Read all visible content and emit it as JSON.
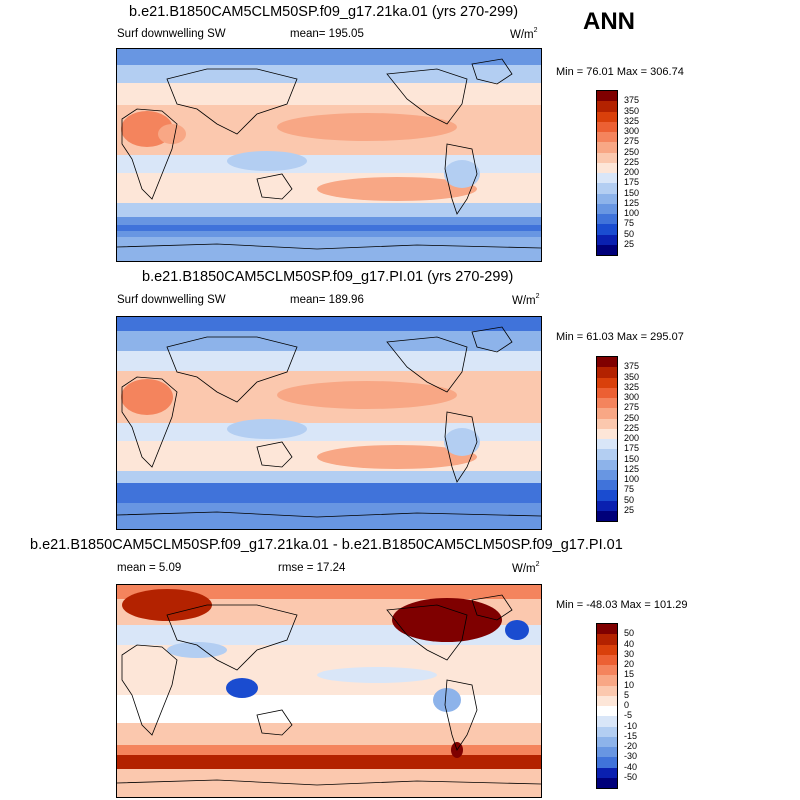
{
  "season": "ANN",
  "panels": [
    {
      "title": "b.e21.B1850CAM5CLM50SP.f09_g17.21ka.01 (yrs 270-299)",
      "left_label": "Surf downwelling SW",
      "center_label": "mean= 195.05",
      "units": "W/m",
      "units_sup": "2",
      "minmax": "Min =  76.01 Max = 306.74",
      "colorbar": {
        "labels": [
          "375",
          "350",
          "325",
          "300",
          "275",
          "250",
          "225",
          "200",
          "175",
          "150",
          "125",
          "100",
          "75",
          "50",
          "25"
        ],
        "colors": [
          "#7f0000",
          "#b32200",
          "#d9400b",
          "#ec6033",
          "#f4845d",
          "#f8a785",
          "#fbc8ae",
          "#fde6d8",
          "#d9e6f8",
          "#b3cef2",
          "#8db3ea",
          "#6896e2",
          "#4073da",
          "#1a4cd0",
          "#0a20b0",
          "#00007a"
        ]
      }
    },
    {
      "title": "b.e21.B1850CAM5CLM50SP.f09_g17.PI.01 (yrs 270-299)",
      "left_label": "Surf downwelling SW",
      "center_label": "mean= 189.96",
      "units": "W/m",
      "units_sup": "2",
      "minmax": "Min =  61.03 Max = 295.07",
      "colorbar": {
        "labels": [
          "375",
          "350",
          "325",
          "300",
          "275",
          "250",
          "225",
          "200",
          "175",
          "150",
          "125",
          "100",
          "75",
          "50",
          "25"
        ],
        "colors": [
          "#7f0000",
          "#b32200",
          "#d9400b",
          "#ec6033",
          "#f4845d",
          "#f8a785",
          "#fbc8ae",
          "#fde6d8",
          "#d9e6f8",
          "#b3cef2",
          "#8db3ea",
          "#6896e2",
          "#4073da",
          "#1a4cd0",
          "#0a20b0",
          "#00007a"
        ]
      }
    },
    {
      "title": "b.e21.B1850CAM5CLM50SP.f09_g17.21ka.01 - b.e21.B1850CAM5CLM50SP.f09_g17.PI.01",
      "left_label": "mean =   5.09",
      "center_label": "rmse =  17.24",
      "units": "W/m",
      "units_sup": "2",
      "minmax": "Min = -48.03 Max = 101.29",
      "colorbar": {
        "labels": [
          "50",
          "40",
          "30",
          "20",
          "15",
          "10",
          "5",
          "0",
          "-5",
          "-10",
          "-15",
          "-20",
          "-30",
          "-40",
          "-50"
        ],
        "colors": [
          "#7f0000",
          "#b32200",
          "#d9400b",
          "#ec6033",
          "#f4845d",
          "#f8a785",
          "#fbc8ae",
          "#fde6d8",
          "#ffffff",
          "#d9e6f8",
          "#b3cef2",
          "#8db3ea",
          "#6896e2",
          "#4073da",
          "#0a20b0",
          "#00007a"
        ]
      }
    }
  ]
}
